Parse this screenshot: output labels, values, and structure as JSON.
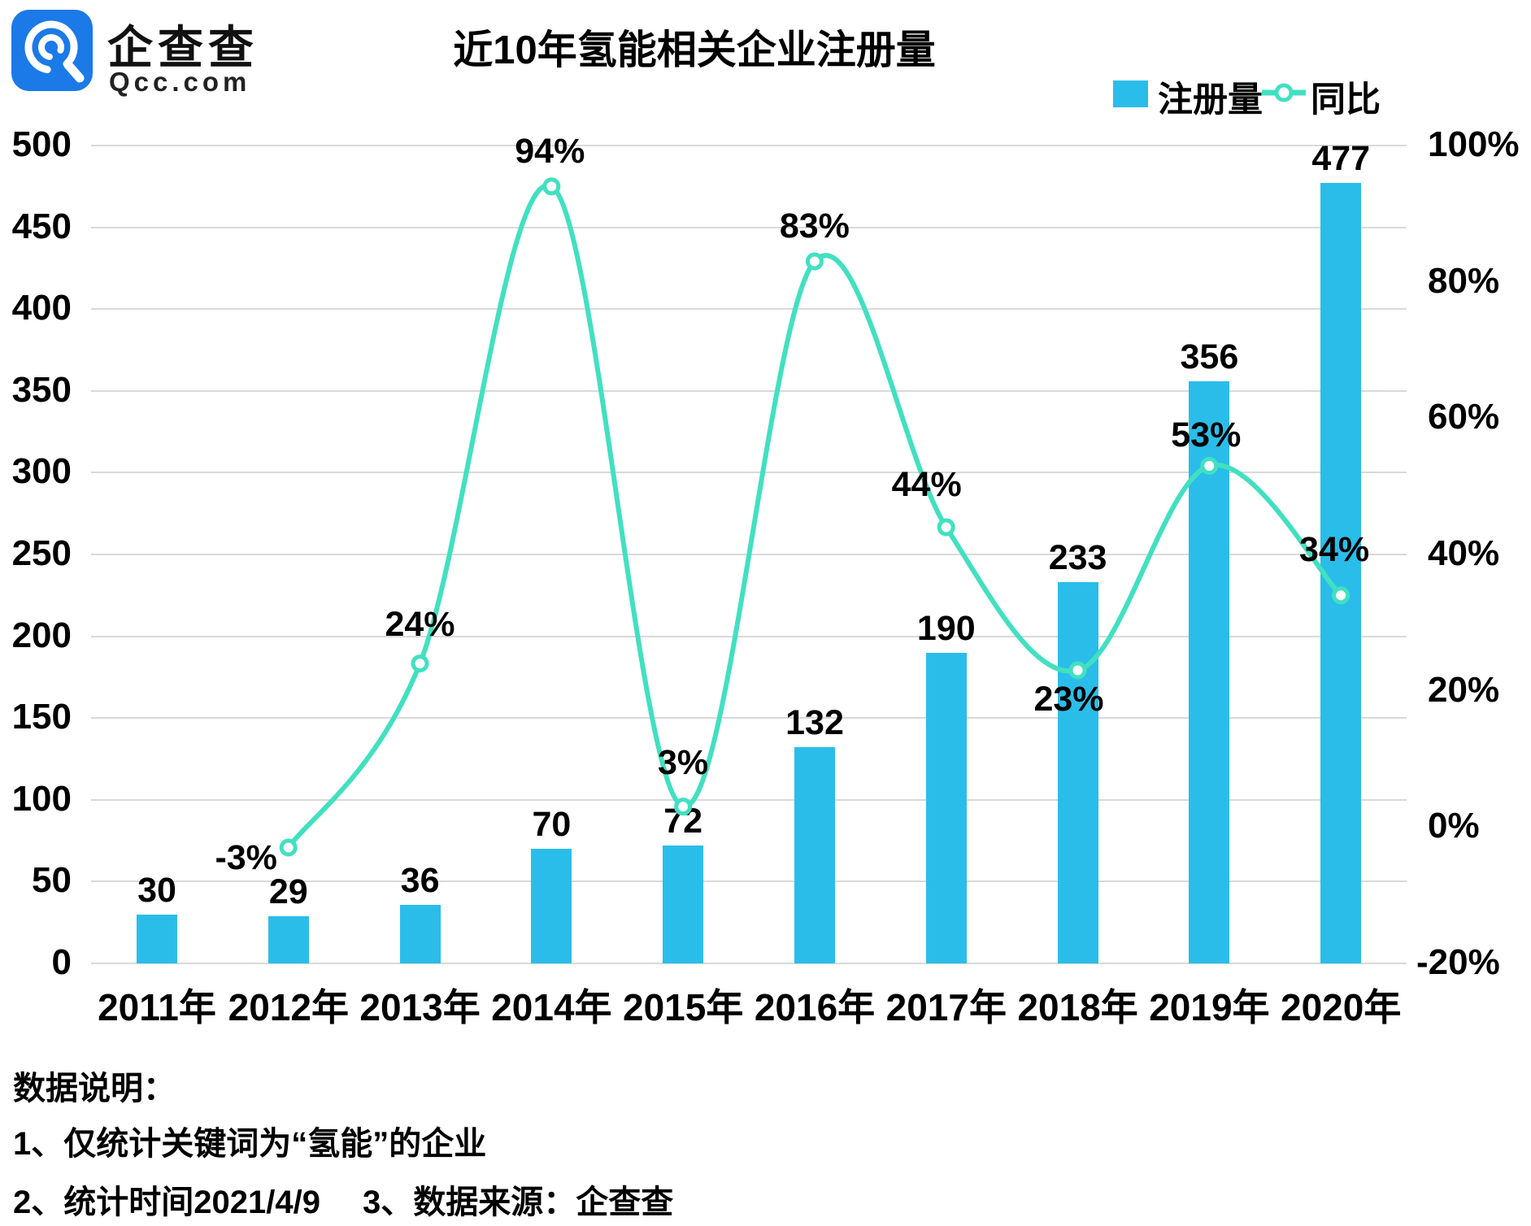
{
  "logo": {
    "brand": "企查查",
    "domain": "Qcc.com"
  },
  "title": "近10年氢能相关企业注册量",
  "legend": {
    "bar_label": "注册量",
    "line_label": "同比"
  },
  "colors": {
    "bar": "#2bbde9",
    "line": "#41e0c1",
    "grid": "#d9d9d9",
    "logo_blue": "#1b79e8",
    "text": "#000000"
  },
  "chart_data": {
    "type": "bar",
    "categories": [
      "2011年",
      "2012年",
      "2013年",
      "2014年",
      "2015年",
      "2016年",
      "2017年",
      "2018年",
      "2019年",
      "2020年"
    ],
    "series": [
      {
        "name": "注册量",
        "type": "bar",
        "values": [
          30,
          29,
          36,
          70,
          72,
          132,
          190,
          233,
          356,
          477
        ]
      },
      {
        "name": "同比",
        "type": "line",
        "unit": "%",
        "values": [
          null,
          -3,
          24,
          94,
          3,
          83,
          44,
          23,
          53,
          34
        ],
        "labels": [
          "",
          "-3%",
          "24%",
          "94%",
          "3%",
          "83%",
          "44%",
          "23%",
          "53%",
          "34%"
        ]
      }
    ],
    "title": "近10年氢能相关企业注册量",
    "xlabel": "",
    "ylabel_left": "",
    "ylabel_right": "",
    "left_axis": {
      "min": 0,
      "max": 500,
      "step": 50,
      "ticks": [
        "0",
        "50",
        "100",
        "150",
        "200",
        "250",
        "300",
        "350",
        "400",
        "450",
        "500"
      ]
    },
    "right_axis": {
      "min": -20,
      "max": 100,
      "step": 20,
      "unit": "%",
      "ticks": [
        "-20%",
        "0%",
        "20%",
        "40%",
        "60%",
        "80%",
        "100%"
      ]
    },
    "grid": true,
    "legend_position": "top-right"
  },
  "footnote": {
    "heading": "数据说明：",
    "line1": "1、仅统计关键词为“氢能”的企业",
    "line2_a": "2、统计时间2021/4/9",
    "line2_b": "3、数据来源：企查查"
  }
}
